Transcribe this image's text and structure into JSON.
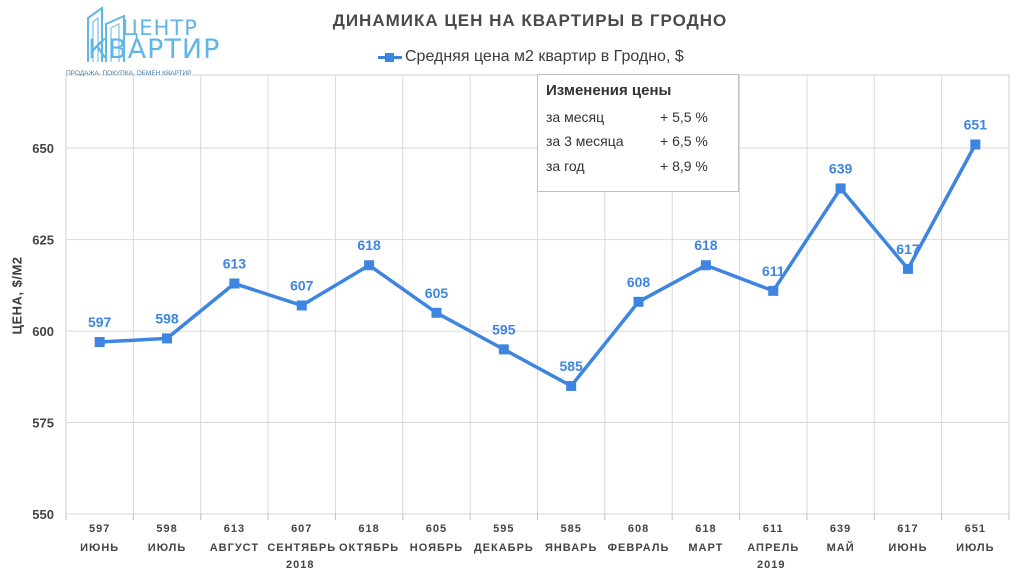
{
  "logo": {
    "line1": "ЦЕНТР",
    "line2": "КВАРТИР",
    "tagline": "ПРОДАЖА. ПОКУПКА. ОБМЕН КВАРТИР"
  },
  "info_box": {
    "title": "Изменения цены",
    "rows": [
      {
        "label": "за месяц",
        "value": "+ 5,5 %"
      },
      {
        "label": "за 3 месяца",
        "value": "+ 6,5 %"
      },
      {
        "label": "за год",
        "value": "+ 8,9 %"
      }
    ]
  },
  "chart_data": {
    "type": "line",
    "title": "ДИНАМИКА ЦЕН НА КВАРТИРЫ В ГРОДНО",
    "ylabel": "ЦЕНА, $/М2",
    "xlabel": "",
    "ylim": [
      550,
      670
    ],
    "yticks": [
      550,
      575,
      600,
      625,
      650
    ],
    "grid": true,
    "legend_position": "top",
    "categories": [
      "ИЮНЬ",
      "ИЮЛЬ",
      "АВГУСТ",
      "СЕНТЯБРЬ",
      "ОКТЯБРЬ",
      "НОЯБРЬ",
      "ДЕКАБРЬ",
      "ЯНВАРЬ",
      "ФЕВРАЛЬ",
      "МАРТ",
      "АПРЕЛЬ",
      "МАЙ",
      "ИЮНЬ",
      "ИЮЛЬ"
    ],
    "year_labels": [
      {
        "label": "2018",
        "category_index": 3.5
      },
      {
        "label": "2019",
        "category_index": 10
      }
    ],
    "series": [
      {
        "name": "Средняя цена м2 квартир в Гродно, $",
        "color": "#3d85e0",
        "values": [
          597,
          598,
          613,
          607,
          618,
          605,
          595,
          585,
          608,
          618,
          611,
          639,
          617,
          651
        ]
      }
    ]
  }
}
